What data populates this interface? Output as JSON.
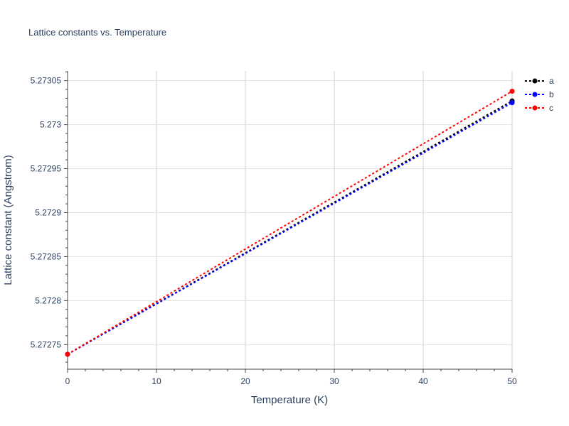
{
  "chart_data": {
    "type": "line",
    "title": "Lattice constants vs. Temperature",
    "xlabel": "Temperature (K)",
    "ylabel": "Lattice constant (Angstrom)",
    "x": [
      0,
      50
    ],
    "xlim": [
      0,
      50
    ],
    "ylim": [
      5.272722,
      5.273061
    ],
    "xticks": [
      0,
      10,
      20,
      30,
      40,
      50
    ],
    "yticks": [
      5.27275,
      5.2728,
      5.27285,
      5.2729,
      5.27295,
      5.273,
      5.27305
    ],
    "ytick_labels": [
      "5.27275",
      "5.2728",
      "5.27285",
      "5.2729",
      "5.27295",
      "5.273",
      "5.27305"
    ],
    "grid": true,
    "legend_position": "top-right",
    "series": [
      {
        "name": "a",
        "color": "#000000",
        "values": [
          5.272739,
          5.273027
        ]
      },
      {
        "name": "b",
        "color": "#0000ff",
        "values": [
          5.272739,
          5.273025
        ]
      },
      {
        "name": "c",
        "color": "#ff0000",
        "values": [
          5.272739,
          5.273038
        ]
      }
    ]
  }
}
